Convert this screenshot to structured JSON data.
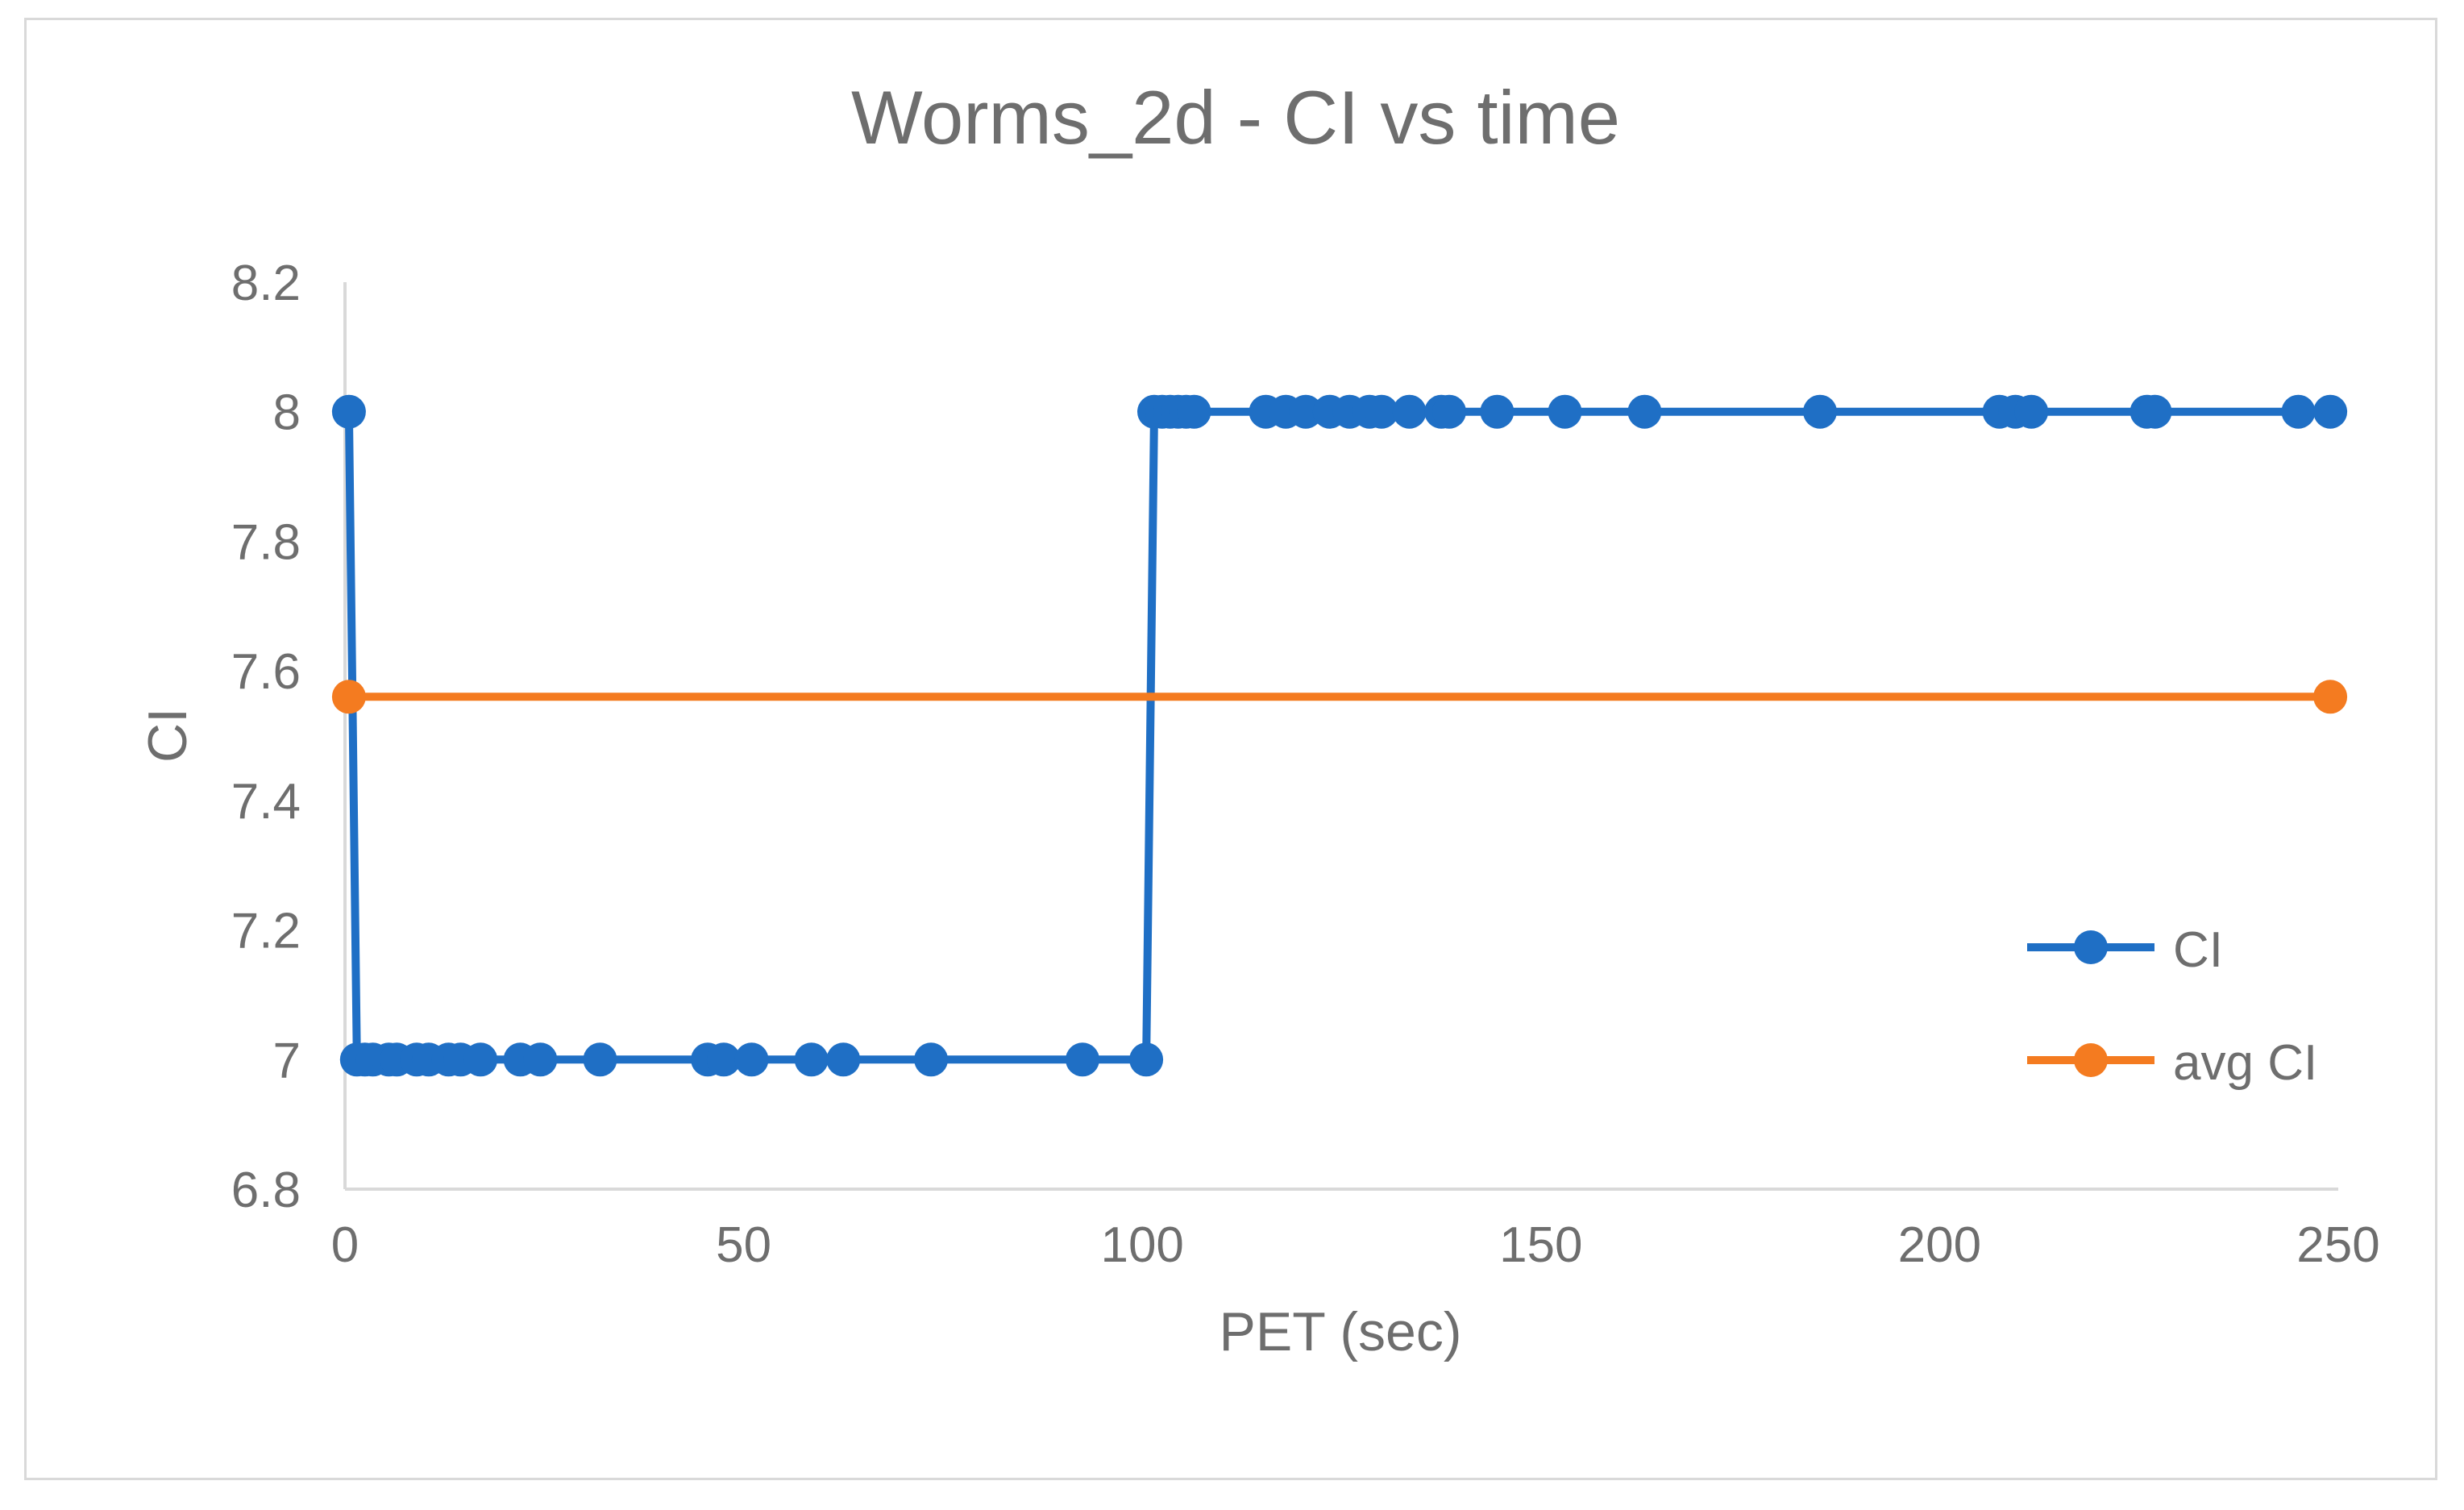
{
  "chart_data": {
    "type": "scatter",
    "title": "Worms_2d - CI vs time",
    "xlabel": "PET (sec)",
    "ylabel": "CI",
    "xlim": [
      0,
      250
    ],
    "ylim": [
      6.8,
      8.2
    ],
    "x_ticks": [
      0,
      50,
      100,
      150,
      200,
      250
    ],
    "y_ticks": [
      6.8,
      7,
      7.2,
      7.4,
      7.6,
      7.8,
      8,
      8.2
    ],
    "grid": false,
    "legend_position": "right",
    "series": [
      {
        "name": "CI",
        "color": "#1f6fc5",
        "marker": "circle",
        "x": [
          0.5,
          1.5,
          2.5,
          3.5,
          5.5,
          6.5,
          9,
          10.5,
          13,
          14.5,
          17,
          22,
          24.5,
          32,
          45.5,
          47.5,
          51,
          58.5,
          62.5,
          73.5,
          92.5,
          100.5,
          101.5,
          102.5,
          103.5,
          104.5,
          105.5,
          106.5,
          115.5,
          118,
          120.5,
          123.5,
          126,
          128.5,
          130,
          133.5,
          137.5,
          138.5,
          144.5,
          153,
          163,
          185,
          207.5,
          209.5,
          211.5,
          226,
          227,
          245,
          249
        ],
        "y": [
          8,
          7,
          7,
          7,
          7,
          7,
          7,
          7,
          7,
          7,
          7,
          7,
          7,
          7,
          7,
          7,
          7,
          7,
          7,
          7,
          7,
          7,
          8,
          8,
          8,
          8,
          8,
          8,
          8,
          8,
          8,
          8,
          8,
          8,
          8,
          8,
          8,
          8,
          8,
          8,
          8,
          8,
          8,
          8,
          8,
          8,
          8,
          8,
          8
        ]
      },
      {
        "name": "avg CI",
        "color": "#f47b20",
        "marker": "circle",
        "x": [
          0.5,
          249
        ],
        "y": [
          7.56,
          7.56
        ]
      }
    ]
  }
}
